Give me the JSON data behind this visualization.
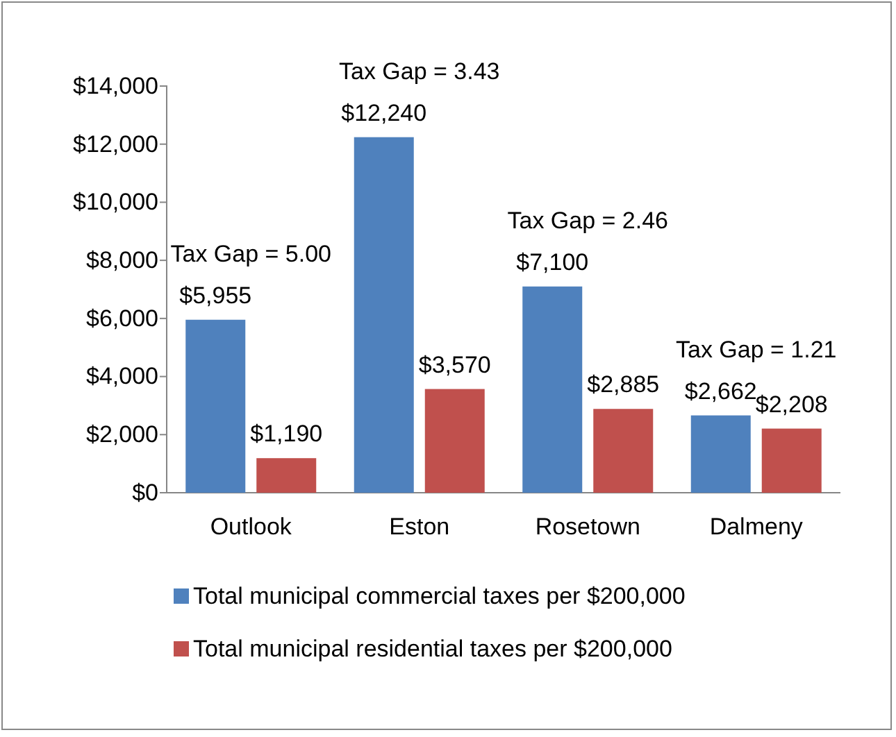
{
  "chart_data": {
    "type": "bar",
    "categories": [
      "Outlook",
      "Eston",
      "Rosetown",
      "Dalmeny"
    ],
    "series": [
      {
        "name": "Total municipal commercial taxes per $200,000",
        "color": "#4f81bd",
        "values": [
          5955,
          12240,
          7100,
          2662
        ]
      },
      {
        "name": "Total municipal residential taxes per $200,000",
        "color": "#c0504d",
        "values": [
          1190,
          3570,
          2885,
          2208
        ]
      }
    ],
    "ylim": [
      0,
      14000
    ],
    "yticks": [
      {
        "value": 0,
        "label": "$0"
      },
      {
        "value": 2000,
        "label": "$2,000"
      },
      {
        "value": 4000,
        "label": "$4,000"
      },
      {
        "value": 6000,
        "label": "$6,000"
      },
      {
        "value": 8000,
        "label": "$8,000"
      },
      {
        "value": 10000,
        "label": "$10,000"
      },
      {
        "value": 12000,
        "label": "$12,000"
      },
      {
        "value": 14000,
        "label": "$14,000"
      }
    ],
    "value_labels": [
      [
        "$5,955",
        "$12,240",
        "$7,100",
        "$2,662"
      ],
      [
        "$1,190",
        "$3,570",
        "$2,885",
        "$2,208"
      ]
    ],
    "annotations": [
      "Tax Gap = 5.00",
      "Tax Gap = 3.43",
      "Tax Gap = 2.46",
      "Tax Gap = 1.21"
    ],
    "legend": "bottom"
  }
}
